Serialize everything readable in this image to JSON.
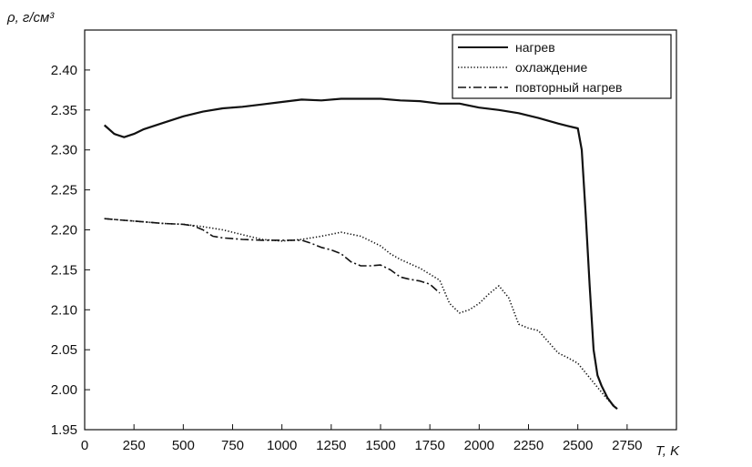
{
  "chart_data": {
    "type": "line",
    "title": "",
    "xlabel": "T, K",
    "ylabel": "ρ, г/см³",
    "xlim": [
      0,
      3000
    ],
    "ylim": [
      1.95,
      2.45
    ],
    "xticks": [
      0,
      250,
      500,
      750,
      1000,
      1250,
      1500,
      1750,
      2000,
      2250,
      2500,
      2750
    ],
    "yticks": [
      1.95,
      2.0,
      2.05,
      2.1,
      2.15,
      2.2,
      2.25,
      2.3,
      2.35,
      2.4
    ],
    "xtick_labels": [
      "0",
      "250",
      "500",
      "750",
      "1000",
      "1250",
      "1500",
      "1750",
      "2000",
      "2250",
      "2500",
      "2750"
    ],
    "ytick_labels": [
      "1.95",
      "2.00",
      "2.05",
      "2.10",
      "2.15",
      "2.20",
      "2.25",
      "2.30",
      "2.35",
      "2.40"
    ],
    "grid": false,
    "legend_position": "top-right",
    "series": [
      {
        "name": "нагрев",
        "style": "solid",
        "x": [
          100,
          150,
          200,
          250,
          300,
          400,
          500,
          600,
          700,
          800,
          900,
          1000,
          1100,
          1200,
          1300,
          1400,
          1500,
          1600,
          1700,
          1800,
          1900,
          2000,
          2100,
          2200,
          2300,
          2400,
          2450,
          2500,
          2520,
          2540,
          2560,
          2580,
          2600,
          2620,
          2650,
          2680,
          2700
        ],
        "y": [
          2.331,
          2.32,
          2.316,
          2.32,
          2.326,
          2.334,
          2.342,
          2.348,
          2.352,
          2.354,
          2.357,
          2.36,
          2.363,
          2.362,
          2.364,
          2.364,
          2.364,
          2.362,
          2.361,
          2.358,
          2.358,
          2.353,
          2.35,
          2.346,
          2.34,
          2.333,
          2.33,
          2.327,
          2.3,
          2.22,
          2.13,
          2.05,
          2.018,
          2.005,
          1.99,
          1.98,
          1.976
        ]
      },
      {
        "name": "охлаждение",
        "style": "dotted",
        "x": [
          100,
          200,
          300,
          400,
          500,
          600,
          700,
          800,
          900,
          1000,
          1100,
          1200,
          1300,
          1400,
          1500,
          1550,
          1600,
          1700,
          1800,
          1850,
          1900,
          1950,
          2000,
          2050,
          2100,
          2150,
          2200,
          2250,
          2300,
          2350,
          2400,
          2450,
          2500,
          2550,
          2600,
          2650,
          2700
        ],
        "y": [
          2.214,
          2.212,
          2.21,
          2.208,
          2.207,
          2.204,
          2.2,
          2.194,
          2.188,
          2.186,
          2.188,
          2.192,
          2.197,
          2.192,
          2.18,
          2.17,
          2.163,
          2.152,
          2.137,
          2.108,
          2.096,
          2.1,
          2.108,
          2.12,
          2.13,
          2.115,
          2.082,
          2.077,
          2.074,
          2.06,
          2.046,
          2.04,
          2.033,
          2.018,
          2.003,
          1.988,
          1.976
        ]
      },
      {
        "name": "повторный нагрев",
        "style": "dashdot",
        "x": [
          100,
          200,
          300,
          400,
          500,
          550,
          600,
          650,
          700,
          800,
          900,
          1000,
          1100,
          1150,
          1200,
          1250,
          1300,
          1350,
          1400,
          1450,
          1500,
          1550,
          1600,
          1650,
          1700,
          1750,
          1800
        ],
        "y": [
          2.214,
          2.212,
          2.21,
          2.208,
          2.207,
          2.205,
          2.2,
          2.192,
          2.19,
          2.188,
          2.187,
          2.187,
          2.187,
          2.183,
          2.178,
          2.175,
          2.17,
          2.16,
          2.155,
          2.155,
          2.156,
          2.15,
          2.141,
          2.138,
          2.136,
          2.132,
          2.121
        ]
      }
    ]
  }
}
